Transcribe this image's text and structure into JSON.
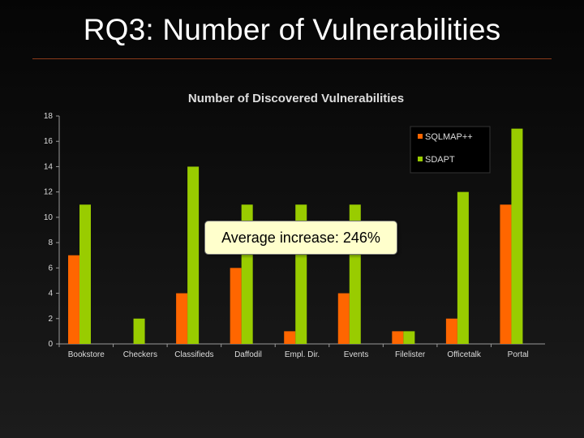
{
  "slide": {
    "title": "RQ3: Number of Vulnerabilities"
  },
  "callout": {
    "text": "Average increase: 246%"
  },
  "colors": {
    "SQLMAP++": "#ff6600",
    "SDAPT": "#99cc00",
    "axis": "#9a9a9a",
    "text": "#dddddd"
  },
  "chart_data": {
    "type": "bar",
    "title": "Number of Discovered Vulnerabilities",
    "xlabel": "",
    "ylabel": "",
    "ylim": [
      0,
      18
    ],
    "yticks": [
      0,
      2,
      4,
      6,
      8,
      10,
      12,
      14,
      16,
      18
    ],
    "categories": [
      "Bookstore",
      "Checkers",
      "Classifieds",
      "Daffodil",
      "Empl. Dir.",
      "Events",
      "Filelister",
      "Officetalk",
      "Portal"
    ],
    "series": [
      {
        "name": "SQLMAP++",
        "values": [
          7,
          0,
          4,
          6,
          1,
          4,
          1,
          2,
          11
        ]
      },
      {
        "name": "SDAPT",
        "values": [
          11,
          2,
          14,
          11,
          11,
          11,
          1,
          12,
          17
        ]
      }
    ],
    "legend": "top-right",
    "grid": false
  }
}
